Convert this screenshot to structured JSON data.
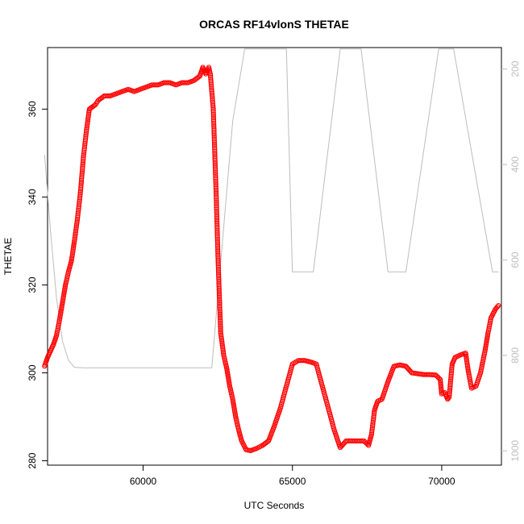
{
  "chart_data": {
    "type": "scatter",
    "title": "ORCAS RF14vlonS THETAE",
    "xlabel": "UTC Seconds",
    "ylabel": "THETAE",
    "xlim": [
      56800,
      72000
    ],
    "ylim": [
      279,
      374
    ],
    "x_ticks": [
      60000,
      65000,
      70000
    ],
    "x_tick_labels": [
      "60000",
      "65000",
      "70000"
    ],
    "y_ticks": [
      280,
      300,
      320,
      340,
      360
    ],
    "y_tick_labels": [
      "280",
      "300",
      "320",
      "340",
      "360"
    ],
    "right_axis": {
      "ylim": [
        1030,
        155
      ],
      "ticks": [
        200,
        400,
        600,
        800,
        1000
      ],
      "tick_labels": [
        "200",
        "400",
        "600",
        "800",
        "1000"
      ],
      "color": "#bdbdbd"
    },
    "grid": false,
    "series": [
      {
        "marker": "open-circle",
        "color": "#ff0000",
        "points": [
          [
            56700,
            301.5
          ],
          [
            56800,
            303.5
          ],
          [
            56900,
            305
          ],
          [
            57000,
            306.5
          ],
          [
            57100,
            308.5
          ],
          [
            57200,
            312
          ],
          [
            57300,
            316
          ],
          [
            57400,
            320
          ],
          [
            57500,
            323
          ],
          [
            57600,
            325.5
          ],
          [
            57700,
            330
          ],
          [
            57800,
            335
          ],
          [
            57900,
            341
          ],
          [
            58000,
            349
          ],
          [
            58100,
            355
          ],
          [
            58200,
            360
          ],
          [
            58300,
            360.5
          ],
          [
            58400,
            361
          ],
          [
            58500,
            362
          ],
          [
            58700,
            363
          ],
          [
            58900,
            363
          ],
          [
            59100,
            363.5
          ],
          [
            59300,
            364
          ],
          [
            59500,
            364.5
          ],
          [
            59700,
            364
          ],
          [
            59900,
            364.5
          ],
          [
            60100,
            365
          ],
          [
            60300,
            365.5
          ],
          [
            60500,
            365.5
          ],
          [
            60700,
            366
          ],
          [
            60900,
            366
          ],
          [
            61100,
            365.5
          ],
          [
            61300,
            366
          ],
          [
            61500,
            366
          ],
          [
            61700,
            366.5
          ],
          [
            61900,
            367.5
          ],
          [
            62000,
            369.5
          ],
          [
            62100,
            368
          ],
          [
            62200,
            369.5
          ],
          [
            62250,
            368
          ],
          [
            62350,
            360
          ],
          [
            62400,
            350
          ],
          [
            62450,
            340
          ],
          [
            62500,
            328
          ],
          [
            62550,
            318
          ],
          [
            62600,
            309
          ],
          [
            62700,
            304
          ],
          [
            62800,
            301
          ],
          [
            62900,
            297
          ],
          [
            63000,
            294
          ],
          [
            63100,
            290
          ],
          [
            63200,
            287
          ],
          [
            63300,
            284.5
          ],
          [
            63450,
            282.5
          ],
          [
            63600,
            282.3
          ],
          [
            63800,
            282.8
          ],
          [
            64000,
            283.5
          ],
          [
            64200,
            284.5
          ],
          [
            64400,
            288
          ],
          [
            64600,
            292
          ],
          [
            64800,
            297
          ],
          [
            65000,
            302
          ],
          [
            65200,
            302.8
          ],
          [
            65400,
            302.8
          ],
          [
            65600,
            302.5
          ],
          [
            65800,
            302
          ],
          [
            66000,
            297
          ],
          [
            66200,
            292
          ],
          [
            66400,
            287
          ],
          [
            66600,
            283
          ],
          [
            66800,
            284.5
          ],
          [
            67000,
            284.5
          ],
          [
            67200,
            284.5
          ],
          [
            67400,
            284.5
          ],
          [
            67550,
            283.5
          ],
          [
            67650,
            286
          ],
          [
            67750,
            291.5
          ],
          [
            67850,
            293.5
          ],
          [
            68000,
            294
          ],
          [
            68200,
            298
          ],
          [
            68400,
            301.5
          ],
          [
            68600,
            301.8
          ],
          [
            68800,
            301.5
          ],
          [
            69000,
            300
          ],
          [
            69200,
            299.8
          ],
          [
            69400,
            299.6
          ],
          [
            69600,
            299.6
          ],
          [
            69800,
            299.5
          ],
          [
            69950,
            298.5
          ],
          [
            70000,
            295.2
          ],
          [
            70100,
            295.5
          ],
          [
            70200,
            294
          ],
          [
            70250,
            294.5
          ],
          [
            70350,
            302
          ],
          [
            70450,
            303.5
          ],
          [
            70600,
            304
          ],
          [
            70800,
            304.5
          ],
          [
            70900,
            300
          ],
          [
            71000,
            296.5
          ],
          [
            71150,
            297
          ],
          [
            71300,
            300
          ],
          [
            71450,
            305
          ],
          [
            71550,
            309
          ],
          [
            71650,
            312.5
          ],
          [
            71800,
            314.5
          ],
          [
            71900,
            315.3
          ]
        ]
      },
      {
        "marker": "line",
        "color": "#bdbdbd",
        "axis": "right",
        "points": [
          [
            56700,
            380
          ],
          [
            56900,
            540
          ],
          [
            57100,
            680
          ],
          [
            57300,
            770
          ],
          [
            57500,
            810
          ],
          [
            57700,
            825
          ],
          [
            58000,
            826
          ],
          [
            60000,
            826
          ],
          [
            62300,
            826
          ],
          [
            63000,
            310
          ],
          [
            63400,
            158
          ],
          [
            64800,
            158
          ],
          [
            65000,
            625
          ],
          [
            65700,
            625
          ],
          [
            66600,
            158
          ],
          [
            67300,
            158
          ],
          [
            68200,
            625
          ],
          [
            68800,
            625
          ],
          [
            69900,
            158
          ],
          [
            70400,
            158
          ],
          [
            71700,
            625
          ],
          [
            71900,
            625
          ]
        ]
      }
    ]
  }
}
